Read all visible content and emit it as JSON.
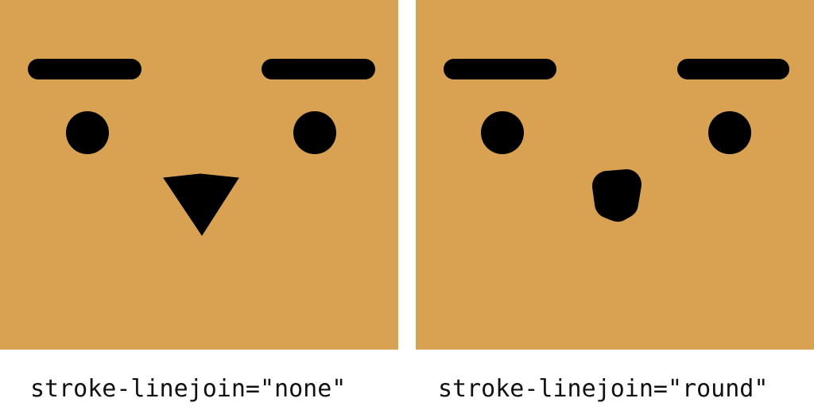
{
  "colors": {
    "panel_bg": "#D8A252",
    "feature": "#000000",
    "page_bg": "#FFFFFF"
  },
  "panels": [
    {
      "caption": "stroke-linejoin=\"none\"",
      "nose_join": "miter"
    },
    {
      "caption": "stroke-linejoin=\"round\"",
      "nose_join": "round"
    }
  ]
}
